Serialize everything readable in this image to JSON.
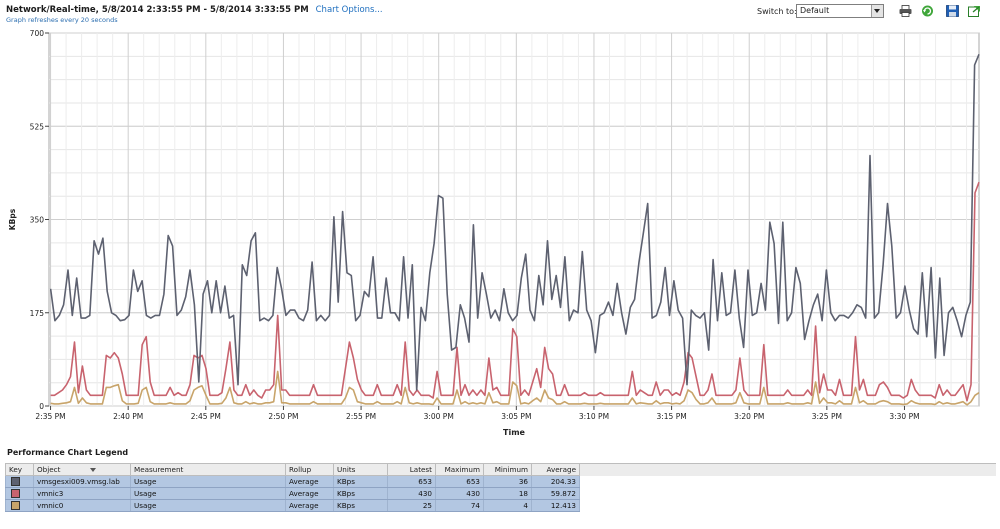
{
  "header": {
    "title": "Network/Real-time, 5/8/2014 2:33:55 PM - 5/8/2014 3:33:55 PM",
    "chart_options": "Chart Options...",
    "refresh_note": "Graph refreshes every 20 seconds",
    "switch_label": "Switch to:",
    "switch_value": "Default"
  },
  "toolbar": {
    "icons": [
      "print-icon",
      "refresh-icon",
      "save-icon",
      "popout-icon"
    ]
  },
  "chart_data": {
    "type": "line",
    "xlabel": "Time",
    "ylabel": "KBps",
    "ylim": [
      0,
      700
    ],
    "yticks": [
      0,
      175,
      350,
      525,
      700
    ],
    "xlim": [
      -0.1,
      59.8
    ],
    "xticks": [
      {
        "pos": 0,
        "label": "2:35 PM"
      },
      {
        "pos": 5,
        "label": "2:40 PM"
      },
      {
        "pos": 10,
        "label": "2:45 PM"
      },
      {
        "pos": 15,
        "label": "2:50 PM"
      },
      {
        "pos": 20,
        "label": "2:55 PM"
      },
      {
        "pos": 25,
        "label": "3:00 PM"
      },
      {
        "pos": 30,
        "label": "3:05 PM"
      },
      {
        "pos": 35,
        "label": "3:10 PM"
      },
      {
        "pos": 40,
        "label": "3:15 PM"
      },
      {
        "pos": 45,
        "label": "3:20 PM"
      },
      {
        "pos": 50,
        "label": "3:25 PM"
      },
      {
        "pos": 55,
        "label": "3:30 PM"
      }
    ],
    "grid": true,
    "series": [
      {
        "name": "vmsgesxi009.vmsg.lab",
        "color": "#5d6170",
        "values": [
          220,
          160,
          170,
          190,
          255,
          170,
          240,
          165,
          165,
          170,
          310,
          285,
          315,
          215,
          175,
          170,
          160,
          162,
          170,
          255,
          215,
          235,
          170,
          165,
          170,
          170,
          210,
          320,
          300,
          170,
          180,
          205,
          255,
          190,
          45,
          210,
          235,
          175,
          235,
          175,
          225,
          165,
          170,
          40,
          265,
          245,
          310,
          325,
          160,
          165,
          160,
          170,
          260,
          220,
          170,
          180,
          180,
          165,
          160,
          180,
          270,
          160,
          170,
          160,
          170,
          355,
          195,
          365,
          250,
          245,
          160,
          170,
          215,
          205,
          280,
          165,
          165,
          240,
          175,
          175,
          160,
          280,
          165,
          265,
          30,
          185,
          160,
          250,
          305,
          395,
          390,
          210,
          105,
          110,
          190,
          165,
          120,
          340,
          165,
          250,
          210,
          165,
          180,
          160,
          220,
          175,
          160,
          170,
          240,
          285,
          180,
          160,
          245,
          190,
          310,
          200,
          245,
          185,
          280,
          160,
          180,
          175,
          290,
          180,
          160,
          100,
          170,
          175,
          195,
          170,
          230,
          175,
          135,
          185,
          200,
          270,
          325,
          380,
          165,
          170,
          195,
          260,
          170,
          235,
          180,
          165,
          40,
          180,
          170,
          165,
          175,
          105,
          275,
          160,
          250,
          170,
          175,
          255,
          165,
          110,
          255,
          170,
          175,
          230,
          180,
          345,
          305,
          155,
          345,
          160,
          175,
          260,
          230,
          125,
          160,
          190,
          210,
          160,
          255,
          175,
          160,
          170,
          170,
          165,
          175,
          190,
          185,
          165,
          470,
          165,
          175,
          265,
          380,
          300,
          165,
          175,
          225,
          180,
          145,
          135,
          250,
          130,
          260,
          90,
          240,
          95,
          175,
          185,
          160,
          130,
          170,
          195,
          640,
          660
        ]
      },
      {
        "name": "vmnic3",
        "color": "#c8636e",
        "values": [
          20,
          20,
          25,
          30,
          40,
          55,
          120,
          25,
          75,
          30,
          20,
          20,
          20,
          20,
          95,
          90,
          100,
          90,
          60,
          20,
          20,
          20,
          20,
          115,
          130,
          45,
          20,
          20,
          20,
          20,
          35,
          20,
          25,
          20,
          20,
          40,
          95,
          90,
          95,
          70,
          20,
          20,
          20,
          25,
          70,
          120,
          30,
          20,
          20,
          40,
          20,
          30,
          20,
          15,
          30,
          30,
          40,
          170,
          30,
          30,
          20,
          20,
          20,
          20,
          20,
          20,
          40,
          20,
          20,
          20,
          20,
          20,
          20,
          20,
          70,
          120,
          90,
          50,
          30,
          20,
          20,
          20,
          40,
          20,
          20,
          20,
          20,
          40,
          20,
          120,
          30,
          20,
          30,
          20,
          20,
          20,
          15,
          65,
          20,
          20,
          20,
          20,
          110,
          20,
          40,
          20,
          30,
          20,
          30,
          20,
          90,
          30,
          35,
          20,
          20,
          20,
          145,
          130,
          20,
          30,
          20,
          45,
          70,
          35,
          110,
          70,
          60,
          20,
          20,
          40,
          20,
          20,
          20,
          20,
          25,
          20,
          20,
          20,
          25,
          20,
          20,
          20,
          20,
          20,
          20,
          20,
          65,
          20,
          30,
          25,
          20,
          20,
          45,
          20,
          30,
          30,
          20,
          25,
          20,
          45,
          100,
          90,
          55,
          20,
          20,
          30,
          60,
          20,
          20,
          20,
          20,
          20,
          30,
          90,
          30,
          20,
          20,
          20,
          20,
          115,
          20,
          20,
          20,
          20,
          20,
          30,
          20,
          20,
          20,
          20,
          30,
          20,
          150,
          25,
          60,
          30,
          30,
          20,
          50,
          20,
          20,
          20,
          130,
          30,
          50,
          20,
          20,
          20,
          40,
          45,
          35,
          20,
          20,
          20,
          15,
          20,
          50,
          30,
          20,
          20,
          20,
          20,
          15,
          40,
          20,
          30,
          20,
          20,
          30,
          40,
          10,
          40,
          400,
          420
        ]
      },
      {
        "name": "vmnic0",
        "color": "#c8a46a",
        "values": [
          5,
          4,
          4,
          5,
          6,
          8,
          35,
          5,
          15,
          6,
          4,
          4,
          4,
          4,
          35,
          35,
          38,
          40,
          10,
          4,
          4,
          4,
          5,
          30,
          35,
          8,
          4,
          4,
          4,
          4,
          6,
          4,
          4,
          4,
          4,
          10,
          30,
          35,
          38,
          20,
          4,
          4,
          4,
          5,
          15,
          35,
          6,
          4,
          4,
          8,
          4,
          6,
          4,
          4,
          6,
          6,
          8,
          65,
          6,
          6,
          4,
          4,
          4,
          4,
          4,
          4,
          8,
          4,
          4,
          4,
          4,
          4,
          4,
          4,
          15,
          35,
          30,
          8,
          6,
          4,
          4,
          4,
          8,
          4,
          4,
          4,
          4,
          8,
          4,
          35,
          6,
          4,
          6,
          4,
          4,
          4,
          3,
          15,
          4,
          4,
          4,
          4,
          30,
          4,
          8,
          4,
          6,
          4,
          6,
          4,
          25,
          6,
          8,
          4,
          4,
          4,
          45,
          38,
          4,
          6,
          4,
          10,
          15,
          8,
          30,
          15,
          12,
          4,
          4,
          8,
          4,
          4,
          4,
          4,
          5,
          4,
          4,
          4,
          5,
          4,
          4,
          4,
          4,
          4,
          4,
          4,
          15,
          4,
          6,
          5,
          4,
          4,
          10,
          4,
          6,
          6,
          4,
          5,
          4,
          10,
          30,
          25,
          12,
          4,
          4,
          6,
          15,
          4,
          4,
          4,
          4,
          4,
          6,
          25,
          6,
          4,
          4,
          4,
          4,
          35,
          4,
          4,
          4,
          4,
          4,
          6,
          4,
          4,
          4,
          4,
          6,
          4,
          45,
          5,
          15,
          6,
          6,
          4,
          10,
          4,
          4,
          4,
          35,
          6,
          10,
          4,
          4,
          4,
          8,
          10,
          8,
          4,
          4,
          4,
          3,
          4,
          10,
          6,
          4,
          4,
          4,
          4,
          3,
          8,
          4,
          6,
          4,
          4,
          6,
          8,
          2,
          8,
          20,
          25
        ]
      }
    ]
  },
  "legend": {
    "title": "Performance Chart Legend",
    "columns": [
      "Key",
      "Object",
      "Measurement",
      "Rollup",
      "Units",
      "Latest",
      "Maximum",
      "Minimum",
      "Average"
    ],
    "rows": [
      {
        "key_color": "#5d6170",
        "object": "vmsgesxi009.vmsg.lab",
        "measurement": "Usage",
        "rollup": "Average",
        "units": "KBps",
        "latest": "653",
        "maximum": "653",
        "minimum": "36",
        "average": "204.33"
      },
      {
        "key_color": "#c8636e",
        "object": "vmnic3",
        "measurement": "Usage",
        "rollup": "Average",
        "units": "KBps",
        "latest": "430",
        "maximum": "430",
        "minimum": "18",
        "average": "59.872"
      },
      {
        "key_color": "#c8a46a",
        "object": "vmnic0",
        "measurement": "Usage",
        "rollup": "Average",
        "units": "KBps",
        "latest": "25",
        "maximum": "74",
        "minimum": "4",
        "average": "12.413"
      }
    ]
  }
}
